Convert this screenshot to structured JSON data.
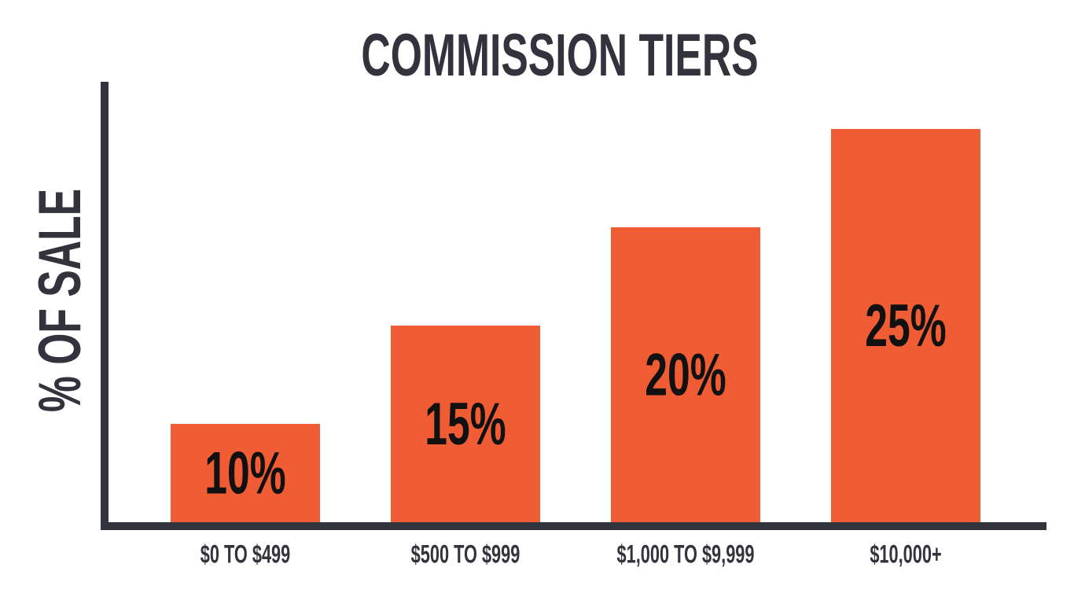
{
  "chart_data": {
    "type": "bar",
    "title": "COMMISSION TIERS",
    "y_label": "% OF SALE",
    "categories": [
      "$0 TO $499",
      "$500 TO $999",
      "$1,000 TO $9,999",
      "$10,000+"
    ],
    "values": [
      10,
      15,
      20,
      25
    ],
    "value_labels": [
      "10%",
      "15%",
      "20%",
      "25%"
    ],
    "color": "#f05d35",
    "ylim": [
      5,
      27.36
    ],
    "grid": false
  }
}
